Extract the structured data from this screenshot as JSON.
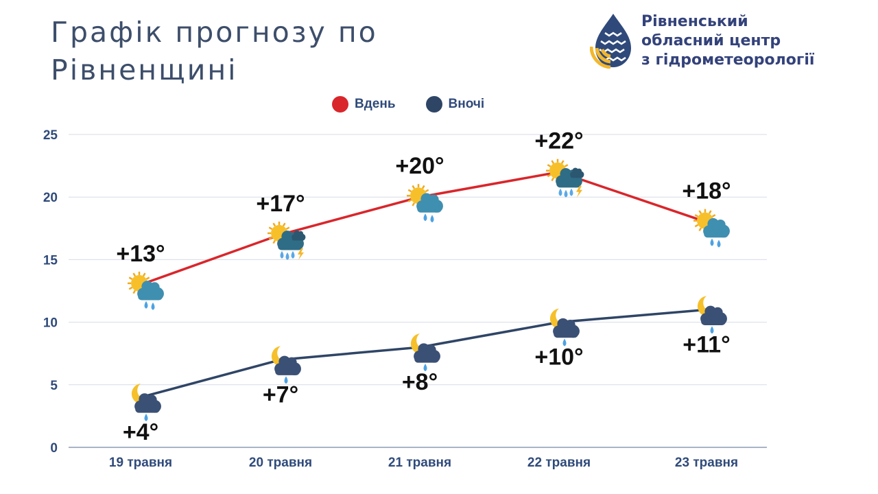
{
  "header": {
    "title_line1": "Графік прогнозу по",
    "title_line2": "Рівненщині",
    "org_line1": "Рівненський",
    "org_line2": "обласний центр",
    "org_line3": "з гідрометеорології"
  },
  "colors": {
    "day": "#d9262b",
    "night": "#2f4566",
    "title": "#3d4e6b",
    "org": "#33427a",
    "grid": "#d6dbe6"
  },
  "chart_data": {
    "type": "line",
    "categories": [
      "19 травня",
      "20 травня",
      "21 травня",
      "22 травня",
      "23 травня"
    ],
    "ylim": [
      0,
      25
    ],
    "yticks": [
      0,
      5,
      10,
      15,
      20,
      25
    ],
    "grid": true,
    "legend_position": "top-center",
    "series": [
      {
        "name": "Вдень",
        "values": [
          13,
          17,
          20,
          22,
          18
        ],
        "labels": [
          "+13°",
          "+17°",
          "+20°",
          "+22°",
          "+18°"
        ],
        "icons": [
          "sun-cloud-rain-icon",
          "sun-cloud-storm-icon",
          "sun-cloud-rain-icon",
          "sun-cloud-storm-icon",
          "sun-cloud-rain-icon"
        ]
      },
      {
        "name": "Вночі",
        "values": [
          4,
          7,
          8,
          10,
          11
        ],
        "labels": [
          "+4°",
          "+7°",
          "+8°",
          "+10°",
          "+11°"
        ],
        "icons": [
          "moon-cloud-rain-icon",
          "moon-cloud-rain-icon",
          "moon-cloud-rain-icon",
          "moon-cloud-rain-icon",
          "moon-cloud-rain-icon"
        ]
      }
    ]
  }
}
